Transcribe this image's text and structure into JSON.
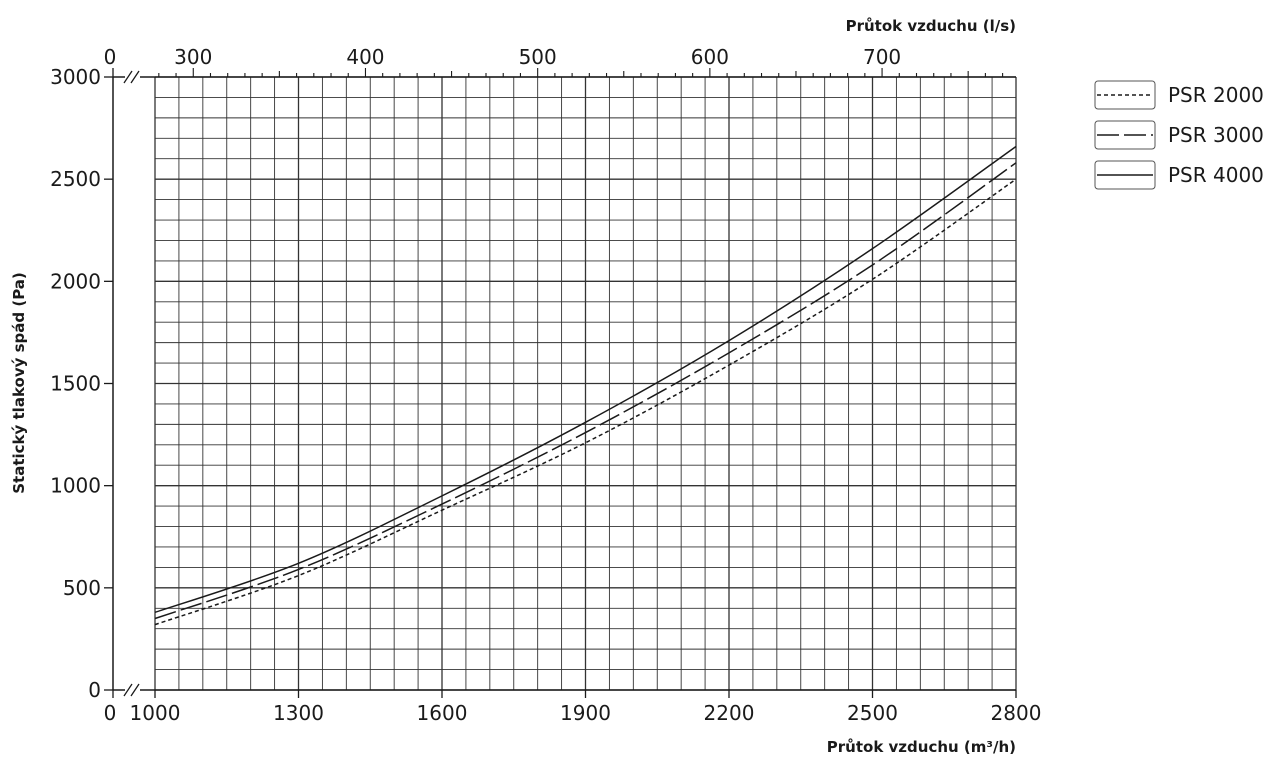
{
  "chart_data": {
    "type": "line",
    "xlabel": "Průtok vzduchu (m³/h)",
    "x2label": "Průtok vzduchu (l/s)",
    "ylabel": "Statický tlakový spád (Pa)",
    "xlim": [
      1000,
      2800
    ],
    "ylim": [
      0,
      3000
    ],
    "x_ticks": [
      "0",
      "1000",
      "1300",
      "1600",
      "1900",
      "2200",
      "2500",
      "2800"
    ],
    "x2_ticks": [
      "0",
      "300",
      "400",
      "500",
      "600",
      "700"
    ],
    "y_ticks": [
      "0",
      "500",
      "1000",
      "1500",
      "2000",
      "2500",
      "3000"
    ],
    "grid": true,
    "legend_position": "right",
    "x": [
      1000,
      1300,
      1600,
      1900,
      2200,
      2500,
      2800
    ],
    "series": [
      {
        "name": "PSR 2000",
        "style": "dotted",
        "values": [
          320,
          560,
          880,
          1210,
          1590,
          2010,
          2500
        ]
      },
      {
        "name": "PSR 3000",
        "style": "dashed",
        "values": [
          350,
          590,
          910,
          1260,
          1650,
          2080,
          2580
        ]
      },
      {
        "name": "PSR 4000",
        "style": "solid",
        "values": [
          380,
          620,
          950,
          1310,
          1710,
          2160,
          2660
        ]
      }
    ],
    "line_color": "#1a1a1a",
    "grid_color": "#333333"
  }
}
